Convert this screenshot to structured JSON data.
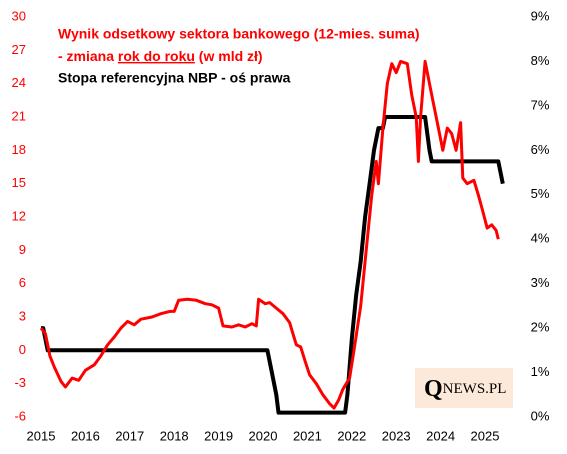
{
  "chart_data": {
    "type": "line",
    "logo_parts": [
      "Q",
      "NEWS.PL"
    ],
    "xlim": [
      2015,
      2025.5
    ],
    "xticks": [
      2015,
      2016,
      2017,
      2018,
      2019,
      2020,
      2021,
      2022,
      2023,
      2024,
      2025
    ],
    "ylim": [
      -6,
      30
    ],
    "yticks": [
      -6,
      -3,
      0,
      3,
      6,
      9,
      12,
      15,
      18,
      21,
      24,
      27,
      30
    ],
    "y2lim": [
      0,
      9
    ],
    "y2ticks": [
      {
        "value": 0,
        "label": "0%"
      },
      {
        "value": 1,
        "label": "1%"
      },
      {
        "value": 2,
        "label": "2%"
      },
      {
        "value": 3,
        "label": "3%"
      },
      {
        "value": 4,
        "label": "4%"
      },
      {
        "value": 5,
        "label": "5%"
      },
      {
        "value": 6,
        "label": "6%"
      },
      {
        "value": 7,
        "label": "7%"
      },
      {
        "value": 8,
        "label": "8%"
      },
      {
        "value": 9,
        "label": "9%"
      }
    ],
    "grid": false,
    "series": [
      {
        "name": "Wynik odsetkowy sektora bankowego (12-mies. suma)",
        "name_note": [
          "- zmiana ",
          "rok do roku",
          " (w mld zł)"
        ],
        "color": "#ff0000",
        "x": [
          2015.0,
          2015.1,
          2015.2,
          2015.3,
          2015.45,
          2015.55,
          2015.7,
          2015.85,
          2016.0,
          2016.2,
          2016.35,
          2016.5,
          2016.65,
          2016.8,
          2016.95,
          2017.1,
          2017.25,
          2017.5,
          2017.7,
          2017.9,
          2018.0,
          2018.1,
          2018.3,
          2018.5,
          2018.7,
          2018.85,
          2019.0,
          2019.1,
          2019.3,
          2019.45,
          2019.6,
          2019.75,
          2019.85,
          2019.9,
          2020.05,
          2020.15,
          2020.3,
          2020.45,
          2020.6,
          2020.75,
          2020.85,
          2020.95,
          2021.05,
          2021.2,
          2021.35,
          2021.5,
          2021.6,
          2021.7,
          2021.8,
          2021.95,
          2022.05,
          2022.2,
          2022.35,
          2022.45,
          2022.55,
          2022.6,
          2022.7,
          2022.8,
          2022.9,
          2023.0,
          2023.1,
          2023.25,
          2023.35,
          2023.45,
          2023.5,
          2023.55,
          2023.65,
          2023.8,
          2023.95,
          2024.05,
          2024.15,
          2024.25,
          2024.35,
          2024.45,
          2024.5,
          2024.6,
          2024.75,
          2024.85,
          2024.95,
          2025.05,
          2025.15,
          2025.25,
          2025.3
        ],
        "values": [
          2,
          1.5,
          -0.5,
          -1.5,
          -2.8,
          -3.3,
          -2.5,
          -2.7,
          -1.8,
          -1.3,
          -0.5,
          0.5,
          1.2,
          2,
          2.6,
          2.3,
          2.8,
          3,
          3.3,
          3.5,
          3.5,
          4.5,
          4.6,
          4.5,
          4.2,
          4.1,
          3.8,
          2.2,
          2.1,
          2.3,
          2.1,
          2.4,
          2.2,
          4.6,
          4.2,
          4.3,
          3.8,
          3.3,
          2.5,
          0.5,
          0.3,
          -1,
          -2.2,
          -3,
          -4,
          -4.8,
          -5.2,
          -4.5,
          -3.5,
          -2.5,
          0,
          4,
          10,
          14,
          17,
          15,
          20,
          24,
          25.8,
          25,
          26,
          25.8,
          23,
          21,
          17,
          21,
          26,
          23,
          20,
          18,
          20,
          19.5,
          18,
          20.5,
          15.5,
          15,
          15.3,
          14,
          12.5,
          11,
          11.3,
          10.8,
          10
        ]
      },
      {
        "name": "Stopa referencyjna NBP - oś prawa",
        "color": "#000000",
        "axis": "y2",
        "x": [
          2015.0,
          2015.05,
          2015.15,
          2020.1,
          2020.2,
          2020.3,
          2020.35,
          2021.85,
          2021.9,
          2022.0,
          2022.1,
          2022.2,
          2022.3,
          2022.4,
          2022.5,
          2022.6,
          2022.7,
          2022.75,
          2023.65,
          2023.75,
          2023.8,
          2025.3,
          2025.4
        ],
        "values": [
          2,
          2,
          1.5,
          1.5,
          1,
          0.5,
          0.1,
          0.1,
          0.5,
          1.75,
          2.75,
          3.5,
          4.5,
          5.25,
          6,
          6.5,
          6.5,
          6.75,
          6.75,
          6,
          5.75,
          5.75,
          5.25
        ]
      }
    ]
  }
}
